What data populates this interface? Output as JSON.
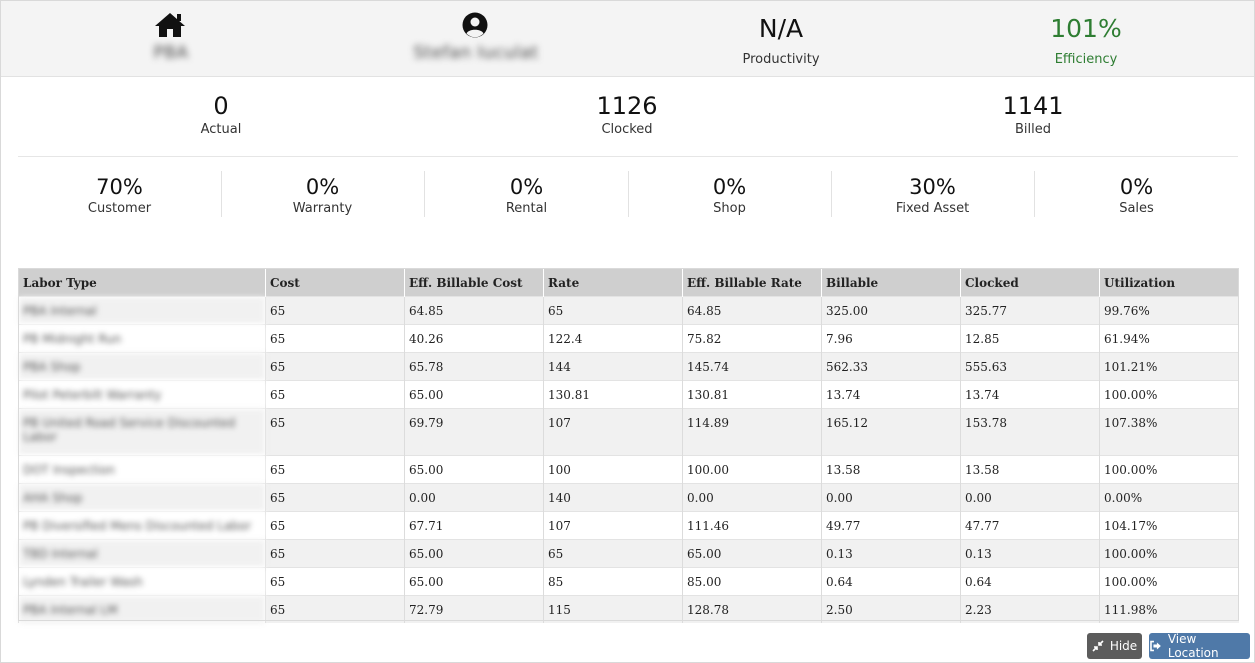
{
  "header": {
    "home": {
      "icon": "home-icon",
      "label": "PBA"
    },
    "user": {
      "icon": "user-circle-icon",
      "label": "Stefan Iuculat"
    },
    "productivity": {
      "value": "N/A",
      "label": "Productivity"
    },
    "efficiency": {
      "value": "101%",
      "label": "Efficiency",
      "color": "#2e7d32"
    }
  },
  "hours": [
    {
      "value": "0",
      "label": "Actual"
    },
    {
      "value": "1126",
      "label": "Clocked"
    },
    {
      "value": "1141",
      "label": "Billed"
    }
  ],
  "breakdown": [
    {
      "value": "70%",
      "label": "Customer"
    },
    {
      "value": "0%",
      "label": "Warranty"
    },
    {
      "value": "0%",
      "label": "Rental"
    },
    {
      "value": "0%",
      "label": "Shop"
    },
    {
      "value": "30%",
      "label": "Fixed Asset"
    },
    {
      "value": "0%",
      "label": "Sales"
    }
  ],
  "table": {
    "columns": [
      "Labor Type",
      "Cost",
      "Eff. Billable Cost",
      "Rate",
      "Eff. Billable Rate",
      "Billable",
      "Clocked",
      "Utilization"
    ],
    "rows": [
      {
        "labor_type": "PBA Internal",
        "cost": "65",
        "eff_cost": "64.85",
        "rate": "65",
        "eff_rate": "64.85",
        "billable": "325.00",
        "clocked": "325.77",
        "utilization": "99.76%"
      },
      {
        "labor_type": "PB Midnight Run",
        "cost": "65",
        "eff_cost": "40.26",
        "rate": "122.4",
        "eff_rate": "75.82",
        "billable": "7.96",
        "clocked": "12.85",
        "utilization": "61.94%"
      },
      {
        "labor_type": "PBA Shop",
        "cost": "65",
        "eff_cost": "65.78",
        "rate": "144",
        "eff_rate": "145.74",
        "billable": "562.33",
        "clocked": "555.63",
        "utilization": "101.21%"
      },
      {
        "labor_type": "Pilot Peterbilt Warranty",
        "cost": "65",
        "eff_cost": "65.00",
        "rate": "130.81",
        "eff_rate": "130.81",
        "billable": "13.74",
        "clocked": "13.74",
        "utilization": "100.00%"
      },
      {
        "labor_type": "PB United Road Service Discounted Labor",
        "cost": "65",
        "eff_cost": "69.79",
        "rate": "107",
        "eff_rate": "114.89",
        "billable": "165.12",
        "clocked": "153.78",
        "utilization": "107.38%"
      },
      {
        "labor_type": "DOT Inspection",
        "cost": "65",
        "eff_cost": "65.00",
        "rate": "100",
        "eff_rate": "100.00",
        "billable": "13.58",
        "clocked": "13.58",
        "utilization": "100.00%"
      },
      {
        "labor_type": "AHA Shop",
        "cost": "65",
        "eff_cost": "0.00",
        "rate": "140",
        "eff_rate": "0.00",
        "billable": "0.00",
        "clocked": "0.00",
        "utilization": "0.00%"
      },
      {
        "labor_type": "PB Diversified Mens Discounted Labor",
        "cost": "65",
        "eff_cost": "67.71",
        "rate": "107",
        "eff_rate": "111.46",
        "billable": "49.77",
        "clocked": "47.77",
        "utilization": "104.17%"
      },
      {
        "labor_type": "TBD Internal",
        "cost": "65",
        "eff_cost": "65.00",
        "rate": "65",
        "eff_rate": "65.00",
        "billable": "0.13",
        "clocked": "0.13",
        "utilization": "100.00%"
      },
      {
        "labor_type": "Lynden Trailer Wash",
        "cost": "65",
        "eff_cost": "65.00",
        "rate": "85",
        "eff_rate": "85.00",
        "billable": "0.64",
        "clocked": "0.64",
        "utilization": "100.00%"
      },
      {
        "labor_type": "PBA Internal LM",
        "cost": "65",
        "eff_cost": "72.79",
        "rate": "115",
        "eff_rate": "128.78",
        "billable": "2.50",
        "clocked": "2.23",
        "utilization": "111.98%"
      }
    ]
  },
  "buttons": {
    "hide": {
      "label": "Hide",
      "icon": "compress-arrows-icon",
      "color": "#5c5c5c"
    },
    "view_location": {
      "label": "View Location",
      "icon": "sign-out-icon",
      "color": "#4f79a8"
    }
  }
}
